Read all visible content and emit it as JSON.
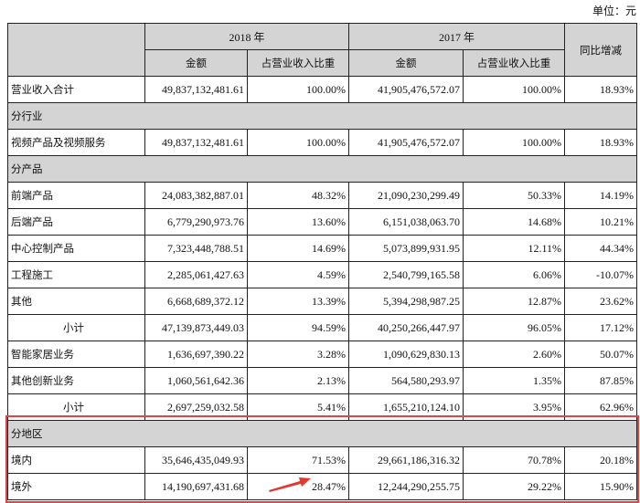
{
  "unit": "单位：元",
  "header": {
    "y2018": "2018 年",
    "y2017": "2017 年",
    "amount": "金额",
    "share": "占营业收入比重",
    "yoy": "同比增减"
  },
  "rows": [
    {
      "type": "data",
      "label": "营业收入合计",
      "a18": "49,837,132,481.61",
      "s18": "100.00%",
      "a17": "41,905,476,572.07",
      "s17": "100.00%",
      "yoy": "18.93%"
    },
    {
      "type": "section",
      "label": "分行业"
    },
    {
      "type": "data",
      "label": "视频产品及视频服务",
      "a18": "49,837,132,481.61",
      "s18": "100.00%",
      "a17": "41,905,476,572.07",
      "s17": "100.00%",
      "yoy": "18.93%"
    },
    {
      "type": "section",
      "label": "分产品"
    },
    {
      "type": "data",
      "label": "前端产品",
      "a18": "24,083,382,887.01",
      "s18": "48.32%",
      "a17": "21,090,230,299.49",
      "s17": "50.33%",
      "yoy": "14.19%"
    },
    {
      "type": "data",
      "label": "后端产品",
      "a18": "6,779,290,973.76",
      "s18": "13.60%",
      "a17": "6,151,038,063.70",
      "s17": "14.68%",
      "yoy": "10.21%"
    },
    {
      "type": "data",
      "label": "中心控制产品",
      "a18": "7,323,448,788.51",
      "s18": "14.69%",
      "a17": "5,073,899,931.95",
      "s17": "12.11%",
      "yoy": "44.34%"
    },
    {
      "type": "data",
      "label": "工程施工",
      "a18": "2,285,061,427.63",
      "s18": "4.59%",
      "a17": "2,540,799,165.58",
      "s17": "6.06%",
      "yoy": "-10.07%"
    },
    {
      "type": "data",
      "label": "其他",
      "a18": "6,668,689,372.12",
      "s18": "13.39%",
      "a17": "5,394,298,987.25",
      "s17": "12.87%",
      "yoy": "23.62%"
    },
    {
      "type": "subtotal",
      "label": "小计",
      "a18": "47,139,873,449.03",
      "s18": "94.59%",
      "a17": "40,250,266,447.97",
      "s17": "96.05%",
      "yoy": "17.12%"
    },
    {
      "type": "data",
      "label": "智能家居业务",
      "a18": "1,636,697,390.22",
      "s18": "3.28%",
      "a17": "1,090,629,830.13",
      "s17": "2.60%",
      "yoy": "50.07%"
    },
    {
      "type": "data",
      "label": "其他创新业务",
      "a18": "1,060,561,642.36",
      "s18": "2.13%",
      "a17": "564,580,293.97",
      "s17": "1.35%",
      "yoy": "87.85%"
    },
    {
      "type": "subtotal",
      "label": "小计",
      "a18": "2,697,259,032.58",
      "s18": "5.41%",
      "a17": "1,655,210,124.10",
      "s17": "3.95%",
      "yoy": "62.96%"
    },
    {
      "type": "section",
      "label": "分地区"
    },
    {
      "type": "data",
      "label": "境内",
      "a18": "35,646,435,049.93",
      "s18": "71.53%",
      "a17": "29,661,186,316.32",
      "s17": "70.78%",
      "yoy": "20.18%"
    },
    {
      "type": "data",
      "label": "境外",
      "a18": "14,190,697,431.68",
      "s18": "28.47%",
      "a17": "12,244,290,255.75",
      "s17": "29.22%",
      "yoy": "15.90%"
    }
  ],
  "colors": {
    "highlight": "#e04444",
    "header_bg": "#d4d4d4"
  }
}
